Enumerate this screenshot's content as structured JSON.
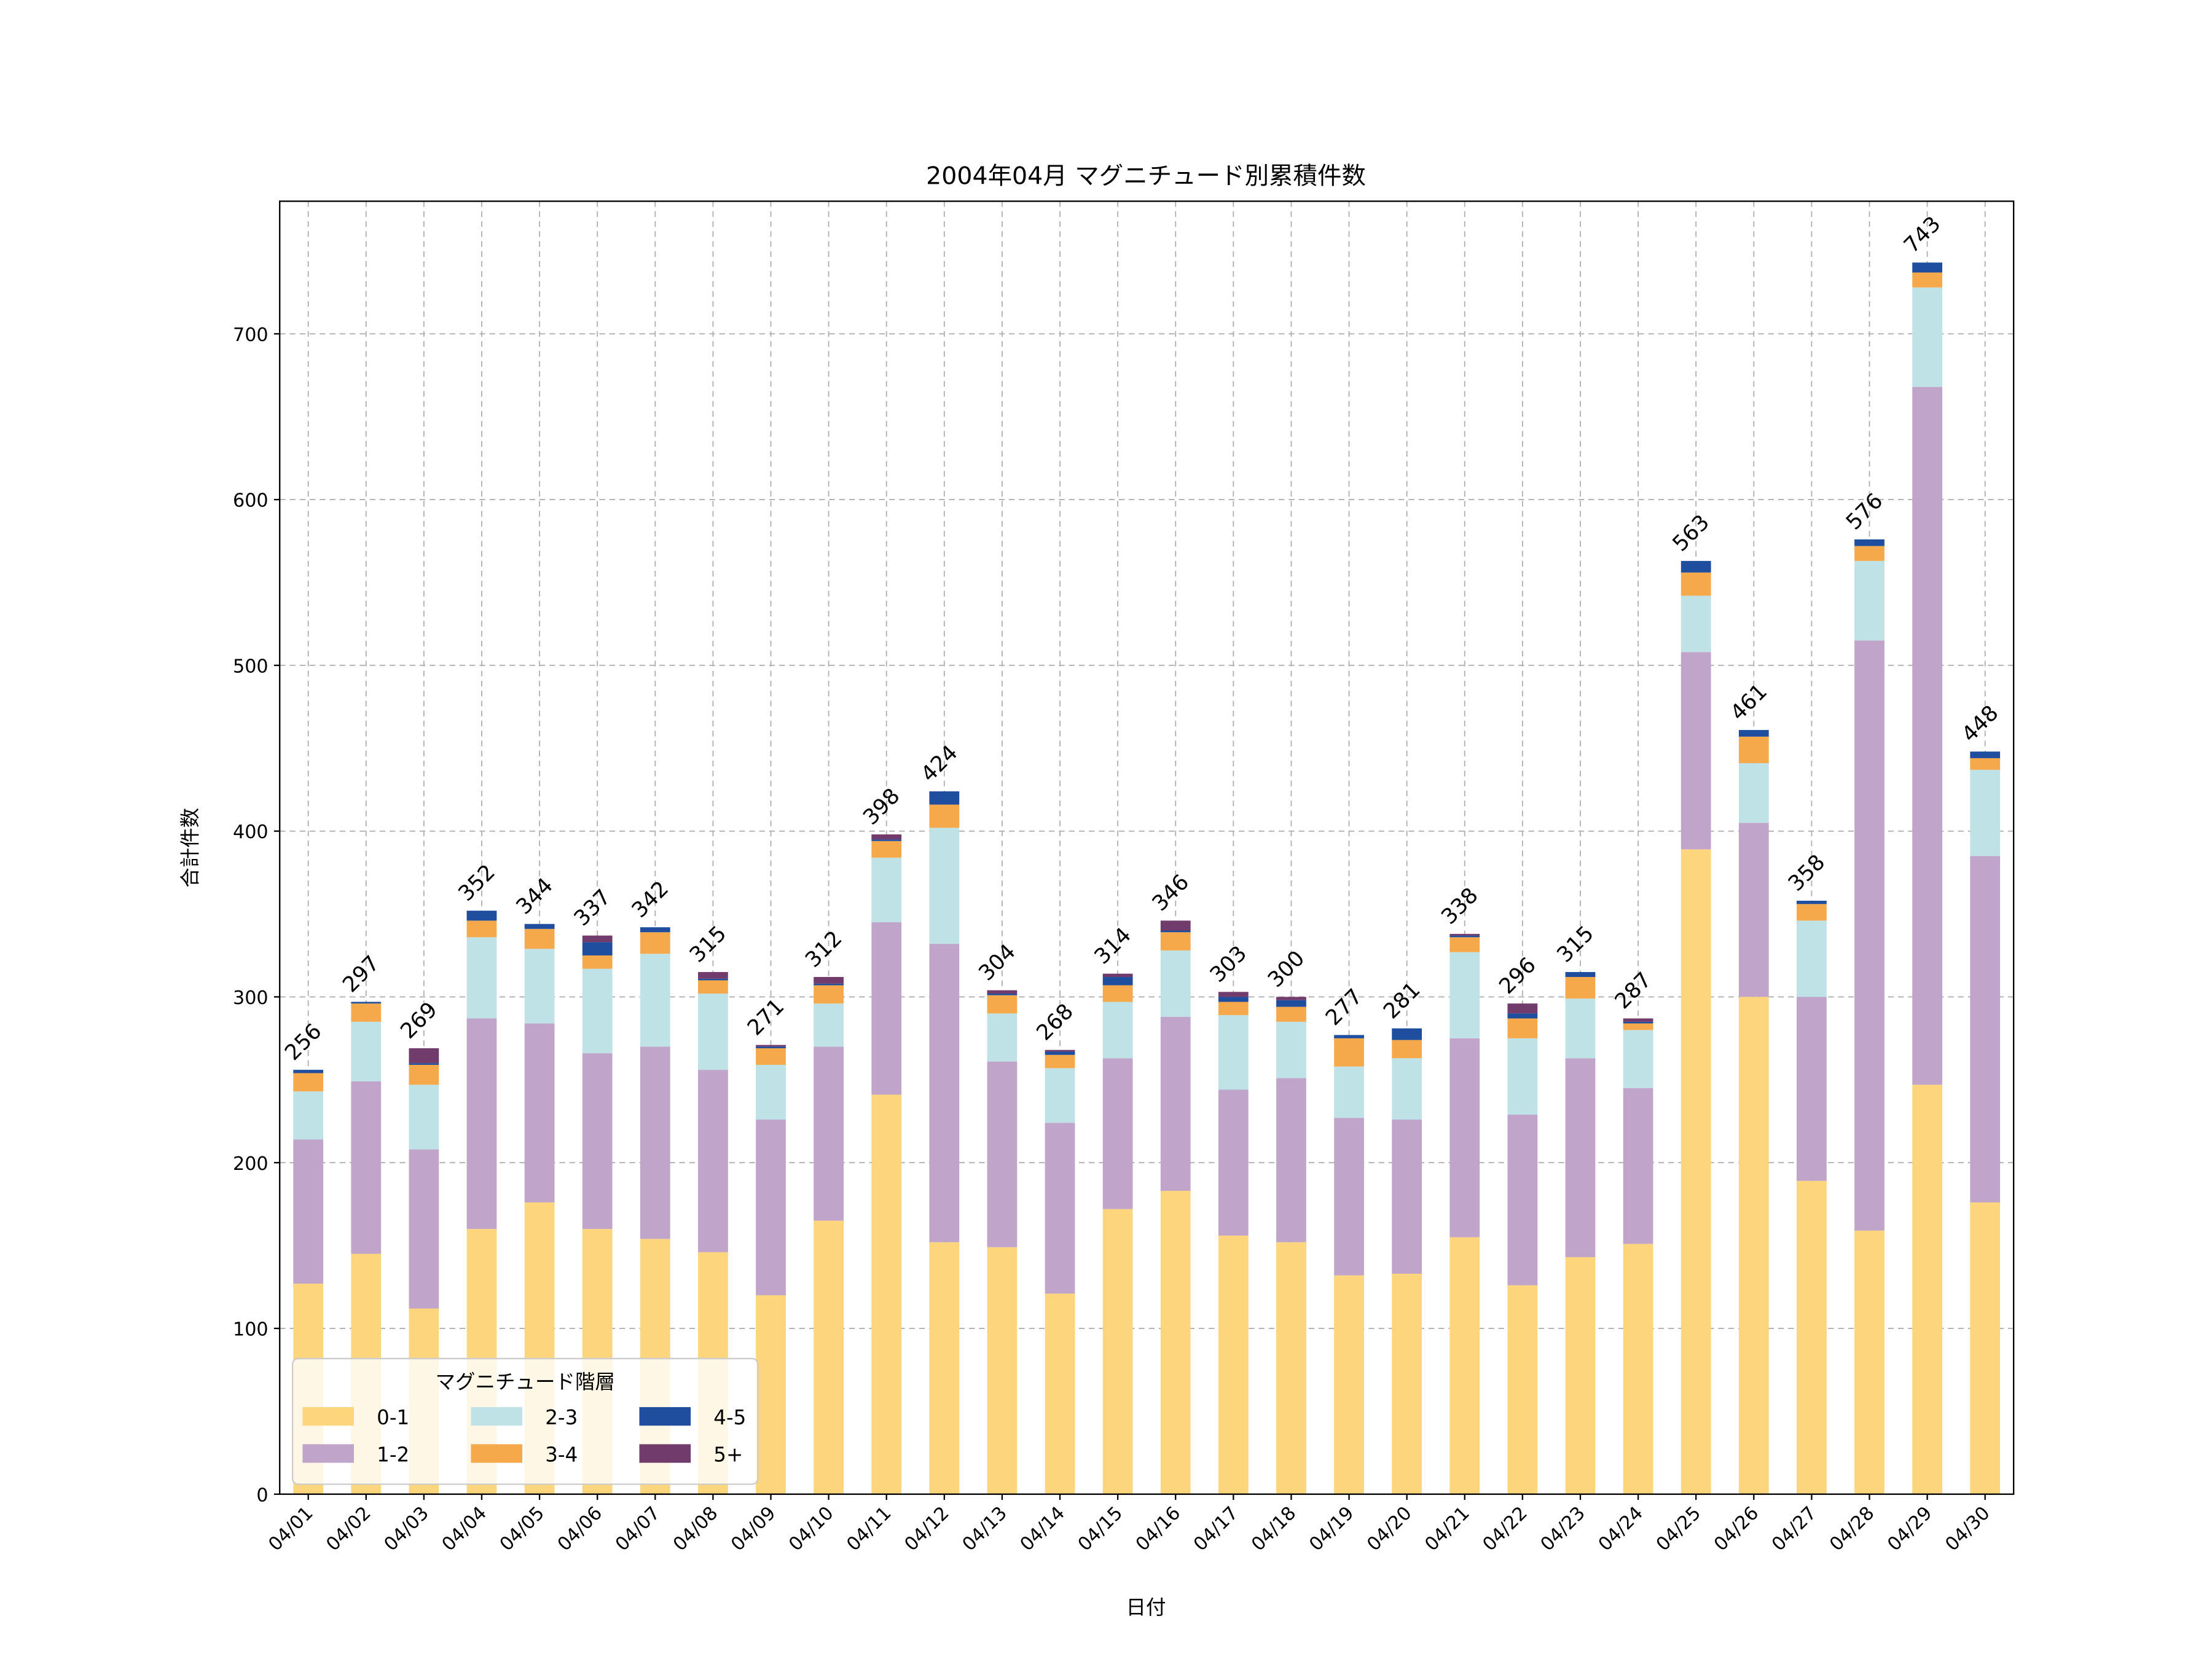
{
  "chart_data": {
    "type": "bar",
    "stacked": true,
    "title": "2004年04月 マグニチュード別累積件数",
    "xlabel": "日付",
    "ylabel": "合計件数",
    "ylim": [
      0,
      780
    ],
    "yticks": [
      0,
      100,
      200,
      300,
      400,
      500,
      600,
      700
    ],
    "grid": true,
    "legend": {
      "title": "マグニチュード階層",
      "placement": "lower-left",
      "columns": 3
    },
    "categories": [
      "04/01",
      "04/02",
      "04/03",
      "04/04",
      "04/05",
      "04/06",
      "04/07",
      "04/08",
      "04/09",
      "04/10",
      "04/11",
      "04/12",
      "04/13",
      "04/14",
      "04/15",
      "04/16",
      "04/17",
      "04/18",
      "04/19",
      "04/20",
      "04/21",
      "04/22",
      "04/23",
      "04/24",
      "04/25",
      "04/26",
      "04/27",
      "04/28",
      "04/29",
      "04/30"
    ],
    "series": [
      {
        "name": "0-1",
        "color": "#FCD57D",
        "values": [
          127,
          145,
          112,
          160,
          176,
          160,
          154,
          146,
          120,
          165,
          241,
          152,
          149,
          121,
          172,
          183,
          156,
          152,
          132,
          133,
          155,
          126,
          143,
          151,
          389,
          300,
          189,
          159,
          247,
          176
        ]
      },
      {
        "name": "1-2",
        "color": "#C0A4C9",
        "values": [
          87,
          104,
          96,
          127,
          108,
          106,
          116,
          110,
          106,
          105,
          104,
          180,
          112,
          103,
          91,
          105,
          88,
          99,
          95,
          93,
          120,
          103,
          120,
          94,
          119,
          105,
          111,
          356,
          421,
          209
        ]
      },
      {
        "name": "2-3",
        "color": "#BFE2E6",
        "values": [
          29,
          36,
          39,
          49,
          45,
          51,
          56,
          46,
          33,
          26,
          39,
          70,
          29,
          33,
          34,
          40,
          45,
          34,
          31,
          37,
          52,
          46,
          36,
          35,
          34,
          36,
          46,
          48,
          60,
          52
        ]
      },
      {
        "name": "3-4",
        "color": "#F5A94B",
        "values": [
          11,
          11,
          12,
          10,
          12,
          8,
          13,
          8,
          10,
          11,
          10,
          14,
          11,
          8,
          10,
          11,
          8,
          9,
          17,
          11,
          9,
          12,
          13,
          4,
          14,
          16,
          10,
          9,
          9,
          7
        ]
      },
      {
        "name": "4-5",
        "color": "#1F4E9E",
        "values": [
          2,
          1,
          1,
          6,
          3,
          8,
          3,
          1,
          1,
          1,
          1,
          8,
          1,
          2,
          5,
          1,
          3,
          4,
          2,
          7,
          1,
          3,
          3,
          1,
          7,
          4,
          2,
          4,
          6,
          4
        ]
      },
      {
        "name": "5+",
        "color": "#713B6B",
        "values": [
          0,
          0,
          9,
          0,
          0,
          4,
          0,
          4,
          1,
          4,
          3,
          0,
          2,
          1,
          2,
          6,
          3,
          2,
          0,
          0,
          1,
          6,
          0,
          2,
          0,
          0,
          0,
          0,
          0,
          0
        ]
      }
    ],
    "totals": [
      256,
      297,
      269,
      352,
      344,
      337,
      342,
      315,
      271,
      312,
      398,
      424,
      304,
      268,
      314,
      346,
      303,
      300,
      277,
      281,
      338,
      296,
      315,
      287,
      563,
      461,
      358,
      576,
      743,
      448
    ]
  }
}
